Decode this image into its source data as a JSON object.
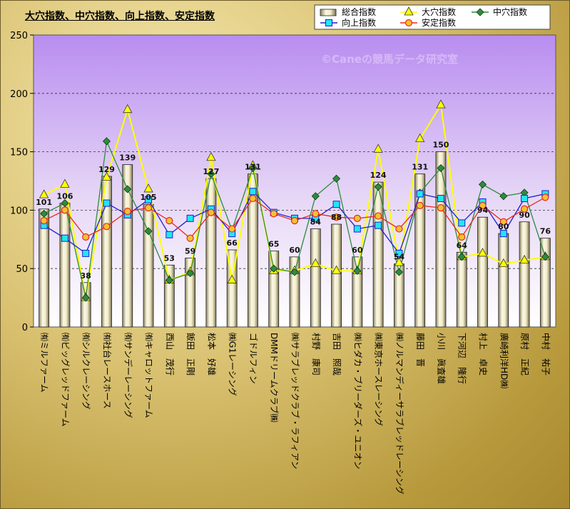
{
  "chart_data": {
    "type": "bar+line",
    "title": "大穴指数、中穴指数、向上指数、安定指数",
    "watermark": "©Caneの競馬データ研究室",
    "ylim": [
      0,
      250
    ],
    "yticks": [
      0,
      50,
      100,
      150,
      200,
      250
    ],
    "grid": "horizontal dashed",
    "legend_position": "top-right",
    "categories": [
      "㈲ミルファーム",
      "㈲ビッグレッドファーム",
      "㈲シルクレーシング",
      "㈲社台レースホース",
      "㈲サンデーレーシング",
      "㈲キャロットファーム",
      "西山　茂行",
      "飯田　正剛",
      "松本　好雄",
      "㈱G1レーシング",
      "ゴドルフィン",
      "DMMドリームクラブ㈱",
      "㈱サラブレッドクラブ・ラフィアン",
      "村野　康司",
      "吉田　照哉",
      "㈱ヒダカ・ブリーダーズ・ユニオン",
      "㈱東京ホースレーシング",
      "㈱ノルマンディーサラブレッドレーシング",
      "藤田　晋",
      "小川　眞査雄",
      "下河辺　隆行",
      "村上　卓史",
      "廣崎利洋HD㈱",
      "原村　正紀",
      "中村　祐子"
    ],
    "bar_labels": [
      "101",
      "106",
      "38",
      "129",
      "139",
      "105",
      "53",
      "59",
      "127",
      "66",
      "131",
      "65",
      "60",
      "84",
      "88",
      "60",
      "124",
      "54",
      "131",
      "150",
      "64",
      "94",
      "80",
      "90",
      "76"
    ],
    "series": [
      {
        "name": "総合指数",
        "type": "bar",
        "color": "#e8e2b0",
        "values": [
          101,
          106,
          38,
          129,
          139,
          105,
          53,
          59,
          127,
          66,
          131,
          65,
          60,
          84,
          88,
          60,
          124,
          54,
          131,
          150,
          64,
          94,
          80,
          90,
          76
        ]
      },
      {
        "name": "大穴指数",
        "type": "line",
        "color": "#ffff00",
        "marker": "triangle",
        "values": [
          113,
          122,
          25,
          128,
          186,
          118,
          40,
          47,
          145,
          40,
          138,
          48,
          48,
          54,
          48,
          48,
          152,
          55,
          161,
          190,
          60,
          63,
          54,
          57,
          60
        ]
      },
      {
        "name": "中穴指数",
        "type": "line",
        "color": "#2e8b3d",
        "marker": "diamond",
        "values": [
          97,
          106,
          25,
          159,
          118,
          82,
          40,
          46,
          131,
          83,
          136,
          50,
          47,
          112,
          127,
          48,
          120,
          47,
          115,
          136,
          60,
          122,
          112,
          115,
          60
        ]
      },
      {
        "name": "向上指数",
        "type": "line",
        "color": "#1f1fd0",
        "marker": "square",
        "values": [
          87,
          76,
          63,
          106,
          96,
          109,
          79,
          93,
          101,
          80,
          116,
          98,
          93,
          93,
          105,
          84,
          87,
          63,
          114,
          110,
          89,
          107,
          80,
          110,
          114
        ]
      },
      {
        "name": "安定指数",
        "type": "line",
        "color": "#e8281e",
        "marker": "circle",
        "values": [
          91,
          100,
          77,
          86,
          99,
          102,
          91,
          76,
          98,
          84,
          110,
          97,
          91,
          97,
          94,
          93,
          95,
          84,
          104,
          102,
          77,
          104,
          90,
          101,
          111
        ]
      }
    ]
  }
}
